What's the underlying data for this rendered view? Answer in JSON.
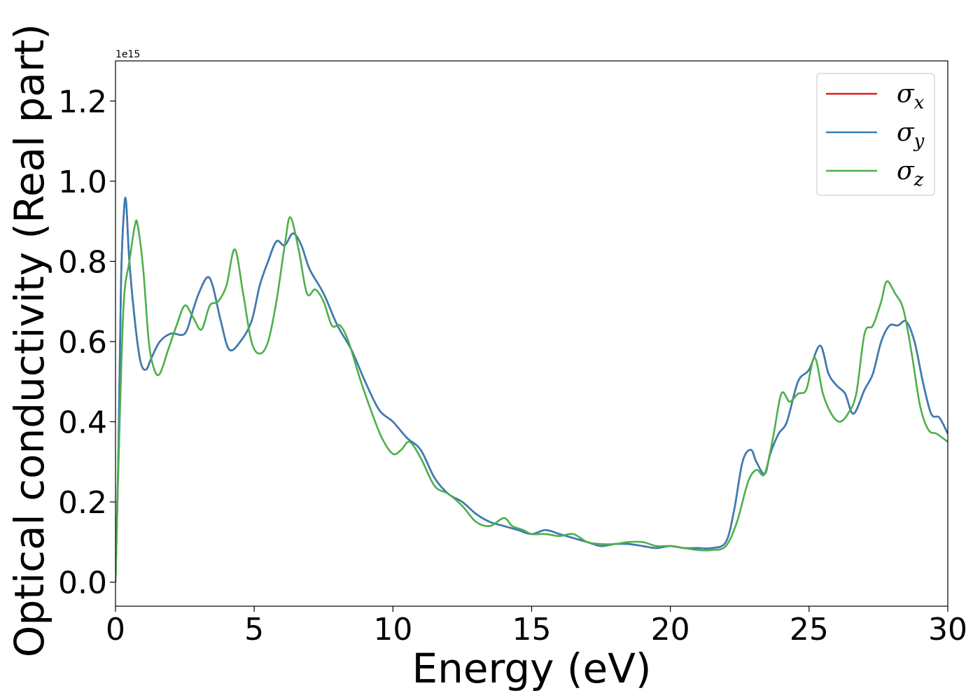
{
  "chart_data": {
    "type": "line",
    "xlabel": "Energy (eV)",
    "ylabel": "Optical conductivity (Real part)",
    "y_offset_label": "1e15",
    "xlim": [
      0,
      30
    ],
    "ylim": [
      -0.06,
      1.3
    ],
    "x_ticks": [
      0,
      5,
      10,
      15,
      20,
      25,
      30
    ],
    "y_ticks": [
      0.0,
      0.2,
      0.4,
      0.6,
      0.8,
      1.0,
      1.2
    ],
    "x_tick_labels": [
      "0",
      "5",
      "10",
      "15",
      "20",
      "25",
      "30"
    ],
    "y_tick_labels": [
      "0.0",
      "0.2",
      "0.4",
      "0.6",
      "0.8",
      "1.0",
      "1.2"
    ],
    "grid": false,
    "legend_position": "top-right",
    "series": [
      {
        "name": "σx",
        "base": "σ",
        "sub": "x",
        "color": "#e41a1c",
        "x": [
          0,
          0.1,
          0.2,
          0.3,
          0.38,
          0.5,
          0.7,
          0.9,
          1.1,
          1.3,
          1.6,
          2.0,
          2.5,
          2.8,
          3.0,
          3.3,
          3.5,
          3.8,
          4.1,
          4.5,
          4.9,
          5.2,
          5.5,
          5.8,
          6.1,
          6.4,
          6.7,
          7.0,
          7.5,
          8.0,
          8.5,
          9.0,
          9.5,
          10.0,
          10.5,
          11.0,
          11.5,
          12.0,
          12.5,
          13.0,
          13.5,
          14.0,
          14.5,
          15.0,
          15.5,
          16.0,
          16.5,
          17.0,
          17.5,
          18.0,
          18.5,
          19.0,
          19.5,
          20.0,
          20.5,
          21.0,
          21.5,
          22.0,
          22.3,
          22.6,
          22.9,
          23.1,
          23.4,
          23.6,
          23.9,
          24.2,
          24.6,
          25.0,
          25.4,
          25.7,
          26.0,
          26.3,
          26.6,
          27.0,
          27.3,
          27.6,
          27.9,
          28.2,
          28.5,
          28.8,
          29.1,
          29.4,
          29.7,
          30.0
        ],
        "values": [
          0.0,
          0.3,
          0.75,
          0.92,
          0.95,
          0.8,
          0.65,
          0.55,
          0.53,
          0.56,
          0.6,
          0.62,
          0.62,
          0.68,
          0.72,
          0.76,
          0.74,
          0.65,
          0.58,
          0.6,
          0.65,
          0.74,
          0.8,
          0.85,
          0.84,
          0.87,
          0.84,
          0.78,
          0.72,
          0.64,
          0.58,
          0.5,
          0.43,
          0.4,
          0.36,
          0.33,
          0.26,
          0.22,
          0.2,
          0.17,
          0.15,
          0.14,
          0.13,
          0.12,
          0.13,
          0.12,
          0.11,
          0.1,
          0.09,
          0.095,
          0.095,
          0.09,
          0.085,
          0.09,
          0.085,
          0.085,
          0.085,
          0.1,
          0.18,
          0.3,
          0.33,
          0.3,
          0.27,
          0.32,
          0.37,
          0.4,
          0.5,
          0.53,
          0.59,
          0.52,
          0.49,
          0.47,
          0.42,
          0.48,
          0.52,
          0.6,
          0.64,
          0.64,
          0.65,
          0.6,
          0.5,
          0.42,
          0.41,
          0.37
        ]
      },
      {
        "name": "σy",
        "base": "σ",
        "sub": "y",
        "color": "#377eb8",
        "x": [
          0,
          0.1,
          0.2,
          0.3,
          0.38,
          0.5,
          0.7,
          0.9,
          1.1,
          1.3,
          1.6,
          2.0,
          2.5,
          2.8,
          3.0,
          3.3,
          3.5,
          3.8,
          4.1,
          4.5,
          4.9,
          5.2,
          5.5,
          5.8,
          6.1,
          6.4,
          6.7,
          7.0,
          7.5,
          8.0,
          8.5,
          9.0,
          9.5,
          10.0,
          10.5,
          11.0,
          11.5,
          12.0,
          12.5,
          13.0,
          13.5,
          14.0,
          14.5,
          15.0,
          15.5,
          16.0,
          16.5,
          17.0,
          17.5,
          18.0,
          18.5,
          19.0,
          19.5,
          20.0,
          20.5,
          21.0,
          21.5,
          22.0,
          22.3,
          22.6,
          22.9,
          23.1,
          23.4,
          23.6,
          23.9,
          24.2,
          24.6,
          25.0,
          25.4,
          25.7,
          26.0,
          26.3,
          26.6,
          27.0,
          27.3,
          27.6,
          27.9,
          28.2,
          28.5,
          28.8,
          29.1,
          29.4,
          29.7,
          30.0
        ],
        "values": [
          0.0,
          0.3,
          0.75,
          0.92,
          0.95,
          0.8,
          0.65,
          0.55,
          0.53,
          0.56,
          0.6,
          0.62,
          0.62,
          0.68,
          0.72,
          0.76,
          0.74,
          0.65,
          0.58,
          0.6,
          0.65,
          0.74,
          0.8,
          0.85,
          0.84,
          0.87,
          0.84,
          0.78,
          0.72,
          0.64,
          0.58,
          0.5,
          0.43,
          0.4,
          0.36,
          0.33,
          0.26,
          0.22,
          0.2,
          0.17,
          0.15,
          0.14,
          0.13,
          0.12,
          0.13,
          0.12,
          0.11,
          0.1,
          0.09,
          0.095,
          0.095,
          0.09,
          0.085,
          0.09,
          0.085,
          0.085,
          0.085,
          0.1,
          0.18,
          0.3,
          0.33,
          0.3,
          0.27,
          0.32,
          0.37,
          0.4,
          0.5,
          0.53,
          0.59,
          0.52,
          0.49,
          0.47,
          0.42,
          0.48,
          0.52,
          0.6,
          0.64,
          0.64,
          0.65,
          0.6,
          0.5,
          0.42,
          0.41,
          0.37
        ]
      },
      {
        "name": "σz",
        "base": "σ",
        "sub": "z",
        "color": "#4daf4a",
        "x": [
          0,
          0.15,
          0.3,
          0.5,
          0.7,
          0.8,
          1.0,
          1.2,
          1.4,
          1.6,
          1.9,
          2.2,
          2.5,
          2.8,
          3.1,
          3.4,
          3.7,
          4.0,
          4.3,
          4.6,
          4.9,
          5.2,
          5.5,
          5.8,
          6.1,
          6.3,
          6.6,
          6.9,
          7.2,
          7.5,
          7.8,
          8.1,
          8.4,
          8.8,
          9.2,
          9.6,
          10.0,
          10.3,
          10.6,
          11.0,
          11.5,
          12.0,
          12.5,
          13.0,
          13.5,
          14.0,
          14.3,
          14.7,
          15.0,
          15.5,
          16.0,
          16.5,
          17.0,
          17.5,
          18.0,
          18.5,
          19.0,
          19.5,
          20.0,
          20.5,
          21.0,
          21.5,
          22.0,
          22.4,
          22.8,
          23.1,
          23.4,
          23.7,
          24.0,
          24.3,
          24.6,
          24.9,
          25.2,
          25.5,
          25.8,
          26.1,
          26.4,
          26.7,
          27.0,
          27.3,
          27.6,
          27.8,
          28.1,
          28.4,
          28.7,
          29.0,
          29.3,
          29.6,
          30.0
        ],
        "values": [
          0.0,
          0.4,
          0.7,
          0.8,
          0.89,
          0.89,
          0.78,
          0.6,
          0.53,
          0.52,
          0.58,
          0.64,
          0.69,
          0.66,
          0.63,
          0.69,
          0.7,
          0.74,
          0.83,
          0.72,
          0.6,
          0.57,
          0.6,
          0.7,
          0.84,
          0.91,
          0.83,
          0.72,
          0.73,
          0.7,
          0.64,
          0.64,
          0.6,
          0.51,
          0.43,
          0.36,
          0.32,
          0.33,
          0.35,
          0.31,
          0.24,
          0.22,
          0.19,
          0.15,
          0.14,
          0.16,
          0.14,
          0.13,
          0.12,
          0.12,
          0.115,
          0.12,
          0.1,
          0.095,
          0.095,
          0.1,
          0.1,
          0.09,
          0.09,
          0.085,
          0.08,
          0.08,
          0.09,
          0.15,
          0.25,
          0.28,
          0.27,
          0.36,
          0.47,
          0.45,
          0.47,
          0.48,
          0.56,
          0.47,
          0.42,
          0.4,
          0.42,
          0.47,
          0.62,
          0.64,
          0.7,
          0.75,
          0.72,
          0.68,
          0.57,
          0.44,
          0.38,
          0.37,
          0.35
        ]
      }
    ]
  }
}
